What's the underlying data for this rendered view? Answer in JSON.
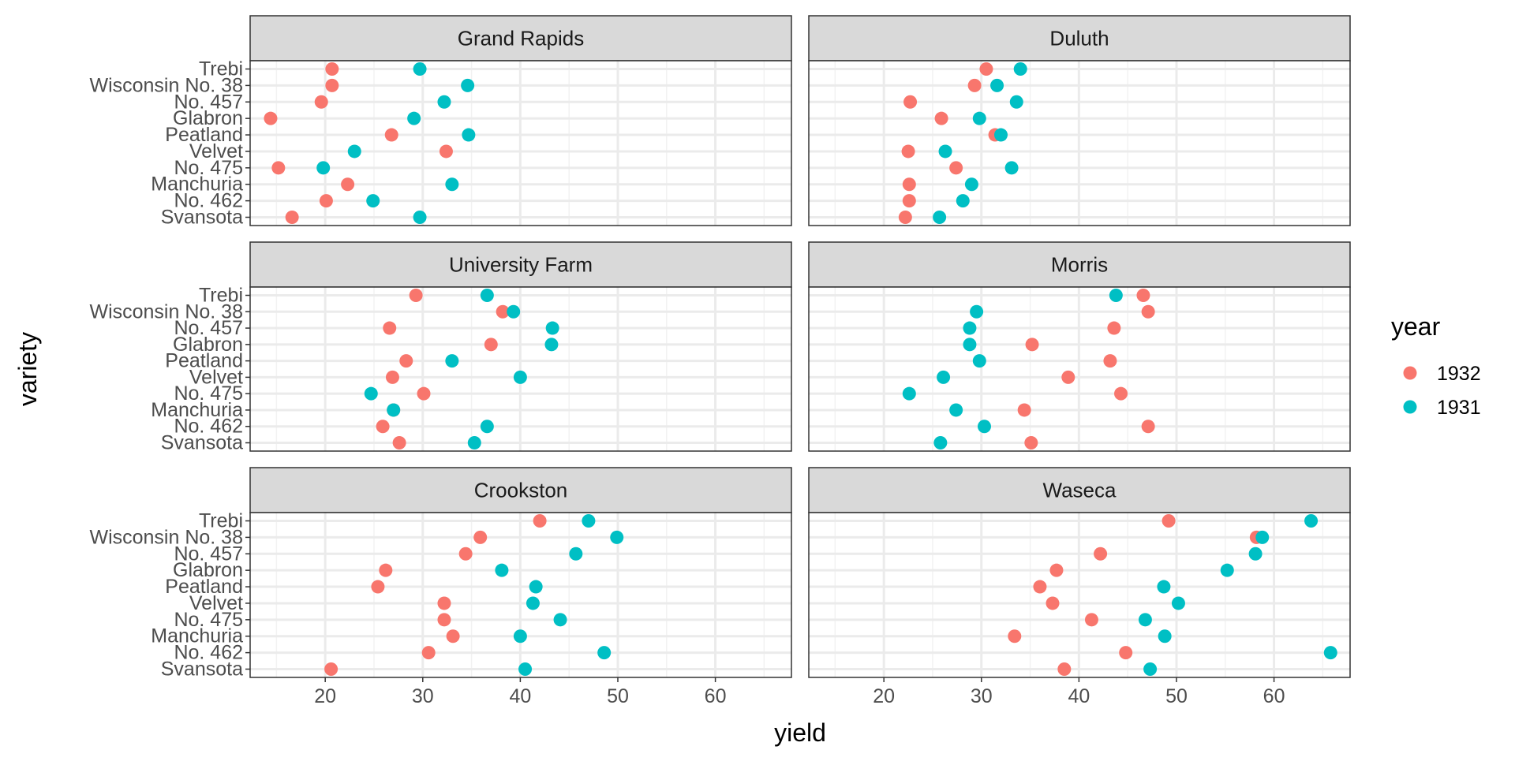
{
  "chart_data": {
    "type": "scatter",
    "xlabel": "yield",
    "ylabel": "variety",
    "xlim": [
      12.3,
      67.8
    ],
    "x_ticks": [
      "20",
      "30",
      "40",
      "50",
      "60"
    ],
    "x_tick_values": [
      20,
      30,
      40,
      50,
      60
    ],
    "varieties": [
      "Trebi",
      "Wisconsin No. 38",
      "No. 457",
      "Glabron",
      "Peatland",
      "Velvet",
      "No. 475",
      "Manchuria",
      "No. 462",
      "Svansota"
    ],
    "grid": true,
    "legend": {
      "title": "year",
      "position": "right",
      "entries": [
        {
          "label": "1932",
          "color": "#F8766D"
        },
        {
          "label": "1931",
          "color": "#00BFC4"
        }
      ]
    },
    "panels": [
      {
        "title": "Grand Rapids",
        "y1932": [
          20.7,
          20.7,
          19.6,
          14.4,
          26.8,
          32.4,
          15.2,
          22.3,
          20.1,
          16.6
        ],
        "y1931": [
          29.7,
          34.6,
          32.2,
          29.1,
          34.7,
          23.0,
          19.8,
          33.0,
          24.9,
          29.7
        ]
      },
      {
        "title": "Duluth",
        "y1932": [
          30.5,
          29.3,
          22.7,
          25.9,
          31.4,
          22.5,
          27.4,
          22.6,
          22.6,
          22.2
        ],
        "y1931": [
          34.0,
          31.6,
          33.6,
          29.8,
          32.0,
          26.3,
          33.1,
          29.0,
          28.1,
          25.7
        ]
      },
      {
        "title": "University Farm",
        "y1932": [
          29.3,
          38.2,
          26.6,
          37.0,
          28.3,
          26.9,
          30.1,
          27.0,
          25.9,
          27.6
        ],
        "y1931": [
          36.6,
          39.3,
          43.3,
          43.2,
          33.0,
          40.0,
          24.7,
          27.0,
          36.6,
          35.3
        ]
      },
      {
        "title": "Morris",
        "y1932": [
          46.6,
          47.1,
          43.6,
          35.2,
          43.2,
          38.9,
          44.3,
          34.4,
          47.1,
          35.1
        ],
        "y1931": [
          43.8,
          29.5,
          28.8,
          28.8,
          29.8,
          26.1,
          22.6,
          27.4,
          30.3,
          25.8
        ]
      },
      {
        "title": "Crookston",
        "y1932": [
          42.0,
          35.9,
          34.4,
          26.2,
          25.4,
          32.2,
          32.2,
          33.1,
          30.6,
          20.6
        ],
        "y1931": [
          47.0,
          49.9,
          45.7,
          38.1,
          41.6,
          41.3,
          44.1,
          40.0,
          48.6,
          40.5
        ]
      },
      {
        "title": "Waseca",
        "y1932": [
          49.2,
          58.2,
          42.2,
          37.7,
          36.0,
          37.3,
          41.3,
          33.4,
          44.8,
          38.5
        ],
        "y1931": [
          63.8,
          58.8,
          58.1,
          55.2,
          48.7,
          50.2,
          46.8,
          48.8,
          65.8,
          47.3
        ]
      }
    ]
  }
}
